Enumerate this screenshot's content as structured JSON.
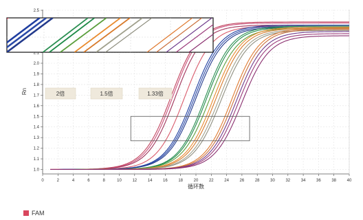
{
  "chart_data": {
    "type": "line",
    "xlabel": "循环数",
    "ylabel": "Rn",
    "xlim": [
      0,
      40
    ],
    "ylim": [
      0.95,
      2.5
    ],
    "x_ticks": [
      "0",
      "2",
      "4",
      "6",
      "8",
      "10",
      "12",
      "14",
      "16",
      "18",
      "20",
      "22",
      "24",
      "26",
      "28",
      "30",
      "32",
      "34",
      "36",
      "38",
      "40"
    ],
    "y_ticks": [
      "1.0",
      "1.1",
      "1.2",
      "1.3",
      "1.4",
      "1.5",
      "1.6",
      "1.7",
      "1.8",
      "1.9",
      "2.0",
      "2.1",
      "2.5"
    ],
    "grid": true,
    "legend": "bottom-left",
    "annotations": [
      {
        "text": "2倍",
        "points_to_x": 2.5
      },
      {
        "text": "1.5倍",
        "points_to_x": 8.7
      },
      {
        "text": "1.33倍",
        "points_to_x": 14.8
      }
    ],
    "highlight_box": {
      "x": [
        11.5,
        27
      ],
      "y": [
        1.27,
        1.5
      ]
    },
    "series": [
      {
        "color": "#c2445e",
        "x0": 16.8,
        "k": 0.55,
        "top": 2.39
      },
      {
        "color": "#c94f7a",
        "x0": 17.0,
        "k": 0.56,
        "top": 2.38
      },
      {
        "color": "#a0325a",
        "x0": 17.3,
        "k": 0.56,
        "top": 2.36
      },
      {
        "color": "#d95b6b",
        "x0": 18.5,
        "k": 0.56,
        "top": 2.35
      },
      {
        "color": "#1f3ea0",
        "x0": 19.6,
        "k": 0.55,
        "top": 2.36
      },
      {
        "color": "#2a4aa8",
        "x0": 19.8,
        "k": 0.55,
        "top": 2.35
      },
      {
        "color": "#233a8c",
        "x0": 20.0,
        "k": 0.55,
        "top": 2.34
      },
      {
        "color": "#2b8f52",
        "x0": 21.2,
        "k": 0.56,
        "top": 2.35
      },
      {
        "color": "#1f8a48",
        "x0": 21.4,
        "k": 0.56,
        "top": 2.34
      },
      {
        "color": "#5a9e3c",
        "x0": 21.8,
        "k": 0.55,
        "top": 2.33
      },
      {
        "color": "#e98b2e",
        "x0": 22.3,
        "k": 0.55,
        "top": 2.34
      },
      {
        "color": "#d87a2a",
        "x0": 22.6,
        "k": 0.55,
        "top": 2.33
      },
      {
        "color": "#a0a08c",
        "x0": 23.0,
        "k": 0.55,
        "top": 2.32
      },
      {
        "color": "#8f8f80",
        "x0": 23.3,
        "k": 0.55,
        "top": 2.31
      },
      {
        "color": "#e07a30",
        "x0": 24.7,
        "k": 0.56,
        "top": 2.33
      },
      {
        "color": "#c96e3a",
        "x0": 25.0,
        "k": 0.56,
        "top": 2.32
      },
      {
        "color": "#6f3c8c",
        "x0": 25.3,
        "k": 0.56,
        "top": 2.3
      },
      {
        "color": "#9a3a7a",
        "x0": 25.6,
        "k": 0.56,
        "top": 2.28
      },
      {
        "color": "#8a2f6f",
        "x0": 26.0,
        "k": 0.56,
        "top": 2.26
      }
    ]
  },
  "legend_label": "FAM",
  "legend_color": "#d9475e"
}
